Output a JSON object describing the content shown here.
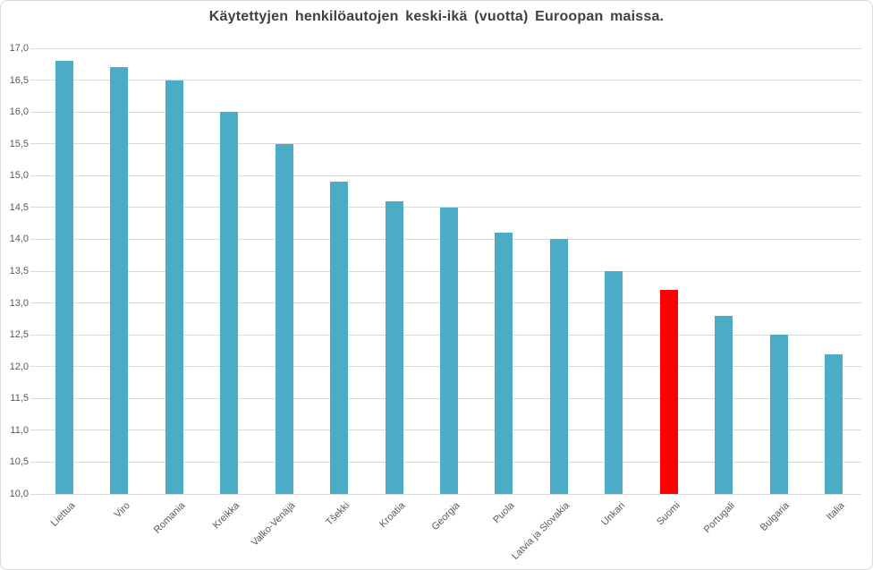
{
  "colors": {
    "bar": "#4BACC6",
    "highlight": "#FF0000",
    "gridline": "#D9D9D9",
    "axis_text": "#595959",
    "title_text": "#404040",
    "border": "#D9D9D9",
    "background": "#FFFFFF"
  },
  "chart_data": {
    "type": "bar",
    "title": "Käytettyjen henkilöautojen keski-ikä (vuotta) Euroopan maissa.",
    "categories": [
      "Liettua",
      "Viro",
      "Romania",
      "Kreikka",
      "Valko-Venäjä",
      "Tšekki",
      "Kroatia",
      "Georgia",
      "Puola",
      "Latvia ja Slovakia",
      "Unkari",
      "Suomi",
      "Portugali",
      "Bulgaria",
      "Italia"
    ],
    "values": [
      16.8,
      16.7,
      16.5,
      16.0,
      15.5,
      14.9,
      14.6,
      14.5,
      14.1,
      14.0,
      13.5,
      13.2,
      12.8,
      12.5,
      12.2
    ],
    "bar_color": "#4BACC6",
    "highlight_category": "Suomi",
    "highlight_color": "#FF0000",
    "ylim": [
      10.0,
      17.0
    ],
    "ytick_step": 0.5,
    "ytick_labels": [
      "17,0",
      "16,5",
      "16,0",
      "15,5",
      "15,0",
      "14,5",
      "14,0",
      "13,5",
      "13,0",
      "12,5",
      "12,0",
      "11,5",
      "11,0",
      "10,5",
      "10,0"
    ],
    "xlabel": "",
    "ylabel": "",
    "grid": true,
    "legend": "none",
    "decimal_separator": ","
  }
}
